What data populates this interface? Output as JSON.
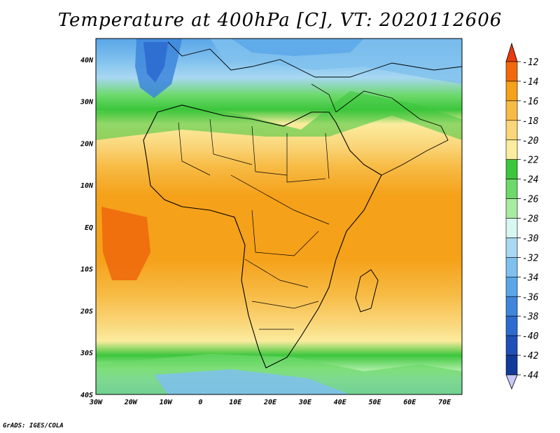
{
  "title": "Temperature at 400hPa [C], VT: 2020112606",
  "credit": "GrADS: IGES/COLA",
  "map": {
    "lon_range": [
      -30,
      75
    ],
    "lat_range": [
      -40,
      45
    ],
    "lon_ticks": [
      "30W",
      "20W",
      "10W",
      "0",
      "10E",
      "20E",
      "30E",
      "40E",
      "50E",
      "60E",
      "70E"
    ],
    "lat_ticks": [
      "40N",
      "30N",
      "20N",
      "10N",
      "EQ",
      "10S",
      "20S",
      "30S",
      "40S"
    ]
  },
  "colorbar": {
    "levels": [
      "-12",
      "-14",
      "-16",
      "-18",
      "-20",
      "-22",
      "-24",
      "-26",
      "-28",
      "-30",
      "-32",
      "-34",
      "-36",
      "-38",
      "-40",
      "-42",
      "-44"
    ],
    "colors": [
      "#e83a0e",
      "#f06a0c",
      "#f5a11a",
      "#f7bb45",
      "#fad67a",
      "#fbec9e",
      "#3cc63c",
      "#6cd96a",
      "#a7eca0",
      "#d7f7f0",
      "#a8d8f2",
      "#7fc0ee",
      "#5aa6e8",
      "#3d86dc",
      "#2e6bd0",
      "#1f4fb9",
      "#123a9a",
      "#0a1e6e",
      "#c8c8ff"
    ]
  },
  "chart_data": {
    "type": "heatmap",
    "title": "Temperature at 400hPa [C], VT: 2020112606",
    "x_range": [
      -30,
      75
    ],
    "y_range": [
      -40,
      45
    ],
    "colorscale_levels": [
      -12,
      -14,
      -16,
      -18,
      -20,
      -22,
      -24,
      -26,
      -28,
      -30,
      -32,
      -34,
      -36,
      -38,
      -40,
      -42,
      -44
    ]
  }
}
